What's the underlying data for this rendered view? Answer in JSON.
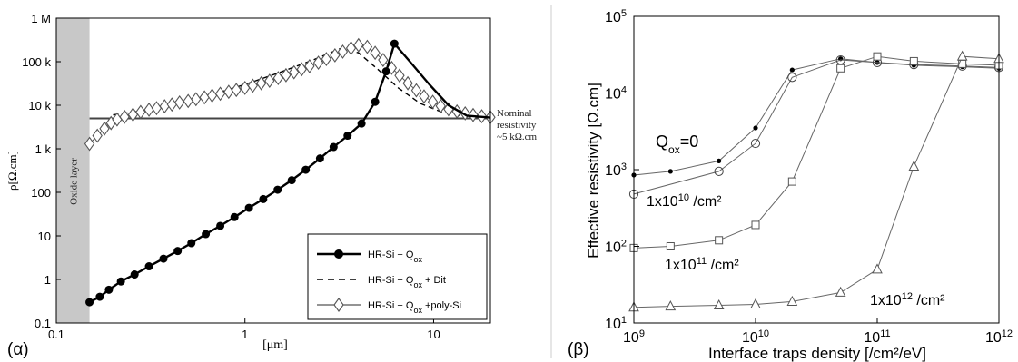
{
  "panel_a": {
    "panel_label": "(α)",
    "y_ticks": [
      {
        "value": 0.1,
        "label": "0.1"
      },
      {
        "value": 1,
        "label": "1"
      },
      {
        "value": 10,
        "label": "10"
      },
      {
        "value": 100,
        "label": "100"
      },
      {
        "value": 1000,
        "label": "1 k"
      },
      {
        "value": 10000,
        "label": "10 k"
      },
      {
        "value": 100000,
        "label": "100 k"
      },
      {
        "value": 1000000,
        "label": "1 M"
      }
    ],
    "x_ticks": [
      {
        "value": 0.1,
        "label": "0.1"
      },
      {
        "value": 1,
        "label": "1"
      },
      {
        "value": 10,
        "label": "10"
      }
    ],
    "ylabel": "ρ[Ω.cm]",
    "xlabel": "[μm]",
    "oxide_label": "Oxide layer",
    "nominal_annotation": [
      "Nominal",
      "resistivity",
      "~5 kΩ.cm"
    ],
    "legend": [
      {
        "base": "HR-Si + Q",
        "sub": "ox",
        "tail": ""
      },
      {
        "base": "HR-Si + Q",
        "sub": "ox",
        "tail": " + Dit"
      },
      {
        "base": "HR-Si + Q",
        "sub": "ox",
        "tail": " +poly-Si"
      }
    ],
    "colors": {
      "line": "#000000",
      "oxide": "#c8c8c8",
      "nominal": "#444444",
      "diamond": "#555555"
    }
  },
  "panel_b": {
    "panel_label": "(β)",
    "y_ticks": [
      {
        "value": 10,
        "base": "10",
        "exp": "1"
      },
      {
        "value": 100,
        "base": "10",
        "exp": "2"
      },
      {
        "value": 1000,
        "base": "10",
        "exp": "3"
      },
      {
        "value": 10000,
        "base": "10",
        "exp": "4"
      },
      {
        "value": 100000,
        "base": "10",
        "exp": "5"
      }
    ],
    "x_ticks": [
      {
        "value": 1000000000,
        "base": "10",
        "exp": "9"
      },
      {
        "value": 10000000000,
        "base": "10",
        "exp": "10"
      },
      {
        "value": 100000000000,
        "base": "10",
        "exp": "11"
      },
      {
        "value": 1000000000000,
        "base": "10",
        "exp": "12"
      }
    ],
    "ylabel": "Effective resistivity  [Ω.cm]",
    "xlabel": "Interface traps density [/cm²/eV]",
    "qox_label": {
      "base": "Q",
      "sub": "ox",
      "tail": "=0"
    },
    "series_labels": [
      {
        "base": "1x10",
        "exp": "10",
        "tail": " /cm²"
      },
      {
        "base": "1x10",
        "exp": "11",
        "tail": " /cm²"
      },
      {
        "base": "1x10",
        "exp": "12",
        "tail": " /cm²"
      }
    ],
    "colors": {
      "series": "#666666",
      "dots": "#000000",
      "dashed": "#333333"
    }
  },
  "chart_data": [
    {
      "type": "line",
      "x_scale": "log",
      "y_scale": "log",
      "xlim": [
        0.1,
        20
      ],
      "ylim": [
        0.1,
        1000000
      ],
      "grid": false,
      "legend_position": "bottom-right",
      "series": [
        {
          "name": "HR-Si + Qox",
          "marker": "filled-circle",
          "x": [
            0.15,
            0.17,
            0.19,
            0.22,
            0.26,
            0.31,
            0.37,
            0.44,
            0.52,
            0.62,
            0.74,
            0.88,
            1.05,
            1.25,
            1.49,
            1.77,
            2.1,
            2.5,
            2.95,
            3.5,
            4.15,
            4.9,
            5.6,
            6.2
          ],
          "y": [
            0.3,
            0.4,
            0.58,
            0.9,
            1.3,
            2.0,
            3.0,
            4.5,
            6.8,
            11,
            17,
            27,
            44,
            70,
            115,
            190,
            330,
            600,
            1100,
            2000,
            3800,
            12000,
            60000,
            260000
          ],
          "line_x": [
            7.5,
            9.5,
            12,
            15,
            20
          ],
          "line_y": [
            100000,
            30000,
            10000,
            5800,
            5200
          ]
        },
        {
          "name": "HR-Si + Qox + Dit",
          "style": "dashed",
          "x": [
            0.2,
            0.35,
            0.6,
            1.0,
            1.5,
            2.3,
            3.2,
            4.0,
            5.0,
            6.5,
            8.5,
            11,
            14,
            20
          ],
          "y": [
            6000,
            8500,
            15000,
            30000,
            55000,
            110000,
            200000,
            160000,
            70000,
            25000,
            11000,
            7000,
            5800,
            5200
          ]
        },
        {
          "name": "HR-Si + Qox +poly-Si",
          "marker": "open-diamond",
          "x": [
            0.15,
            0.165,
            0.18,
            0.195,
            0.21,
            0.23,
            0.255,
            0.28,
            0.31,
            0.34,
            0.375,
            0.41,
            0.45,
            0.5,
            0.55,
            0.61,
            0.67,
            0.74,
            0.82,
            0.9,
            1.0,
            1.1,
            1.22,
            1.35,
            1.5,
            1.65,
            1.82,
            2.0,
            2.2,
            2.45,
            2.7,
            3.0,
            3.3,
            3.65,
            4.0,
            4.45,
            4.9,
            5.4,
            6.0,
            6.6,
            7.3,
            8.1,
            8.9,
            9.9,
            10.9,
            12.0,
            13.3,
            14.7,
            16.2,
            18.0,
            20.0
          ],
          "y": [
            1300,
            2000,
            2900,
            3900,
            4700,
            5400,
            6100,
            7000,
            7900,
            8600,
            9500,
            10400,
            11600,
            12500,
            13800,
            15200,
            16700,
            18400,
            20300,
            22400,
            25000,
            28200,
            32000,
            36500,
            42000,
            49000,
            57000,
            67000,
            79000,
            95000,
            115000,
            140000,
            170000,
            205000,
            240000,
            220000,
            160000,
            110000,
            72000,
            48000,
            32000,
            22000,
            16000,
            12000,
            9600,
            8100,
            7200,
            6500,
            6000,
            5600,
            5300
          ]
        },
        {
          "name": "Nominal resistivity",
          "style": "flat",
          "x": [
            0.15,
            20
          ],
          "y": [
            5000,
            5000
          ]
        }
      ]
    },
    {
      "type": "line",
      "x_scale": "log",
      "y_scale": "log",
      "xlim": [
        1000000000,
        1000000000000
      ],
      "ylim": [
        10,
        100000
      ],
      "grid": false,
      "reference_line_y": 10000,
      "series": [
        {
          "name": "",
          "marker": "filled-dot",
          "x": [
            1000000000,
            2000000000,
            5000000000,
            10000000000,
            20000000000,
            50000000000,
            100000000000,
            200000000000,
            500000000000,
            1000000000000
          ],
          "y": [
            850,
            950,
            1300,
            3500,
            20000,
            28000,
            25000,
            23000,
            22000,
            21000
          ]
        },
        {
          "name": "",
          "marker": "open-circle",
          "x": [
            1000000000,
            5000000000,
            10000000000,
            20000000000,
            50000000000,
            100000000000,
            200000000000,
            500000000000,
            1000000000000
          ],
          "y": [
            480,
            950,
            2200,
            16000,
            27000,
            25000,
            23500,
            22500,
            21500
          ]
        },
        {
          "name": "",
          "marker": "open-square",
          "x": [
            1000000000,
            2000000000,
            5000000000,
            10000000000,
            20000000000,
            50000000000,
            100000000000,
            200000000000,
            500000000000,
            1000000000000
          ],
          "y": [
            95,
            100,
            120,
            190,
            700,
            21000,
            30000,
            26000,
            24000,
            23000
          ]
        },
        {
          "name": "",
          "marker": "open-triangle",
          "x": [
            1000000000,
            2000000000,
            5000000000,
            10000000000,
            20000000000,
            50000000000,
            100000000000,
            200000000000,
            500000000000,
            1000000000000
          ],
          "y": [
            16,
            16.5,
            17,
            17.5,
            19,
            25,
            50,
            1100,
            30000,
            28000
          ]
        }
      ]
    }
  ]
}
